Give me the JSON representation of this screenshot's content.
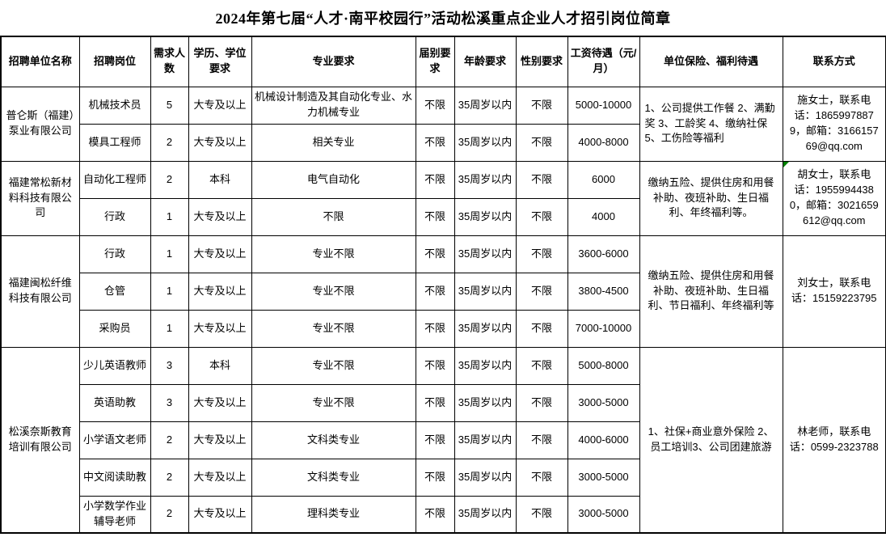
{
  "title": "2024年第七届“人才·南平校园行”活动松溪重点企业人才招引岗位简章",
  "colors": {
    "border": "#000000",
    "text": "#000000",
    "background": "#ffffff",
    "corner_marker_green": "#008000"
  },
  "table": {
    "headers": [
      "招聘单位名称",
      "招聘岗位",
      "需求人数",
      "学历、学位要求",
      "专业要求",
      "届别要求",
      "年龄要求",
      "性别要求",
      "工资待遇（元/月）",
      "单位保险、福利待遇",
      "联系方式"
    ],
    "companies": [
      {
        "name": "普仑斯（福建）泵业有限公司",
        "welfare": "1、公司提供工作餐 2、满勤奖 3、工龄奖 4、缴纳社保 5、工伤险等福利",
        "contact": "施女士，联系电话：18659978879，邮箱：316615769@qq.com",
        "has_corner_marker": false,
        "positions": [
          {
            "title": "机械技术员",
            "headcount": "5",
            "education": "大专及以上",
            "major": "机械设计制造及其自动化专业、水力机械专业",
            "class_req": "不限",
            "age": "35周岁以内",
            "gender": "不限",
            "salary": "5000-10000"
          },
          {
            "title": "模具工程师",
            "headcount": "2",
            "education": "大专及以上",
            "major": "相关专业",
            "class_req": "不限",
            "age": "35周岁以内",
            "gender": "不限",
            "salary": "4000-8000"
          }
        ]
      },
      {
        "name": "福建常松新材料科技有限公司",
        "welfare": "缴纳五险、提供住房和用餐补助、夜班补助、生日福利、年终福利等。",
        "contact": "胡女士，联系电话：19559944380，邮箱：3021659612@qq.com",
        "has_corner_marker": true,
        "positions": [
          {
            "title": "自动化工程师",
            "headcount": "2",
            "education": "本科",
            "major": "电气自动化",
            "class_req": "不限",
            "age": "35周岁以内",
            "gender": "不限",
            "salary": "6000"
          },
          {
            "title": "行政",
            "headcount": "1",
            "education": "大专及以上",
            "major": "不限",
            "class_req": "不限",
            "age": "35周岁以内",
            "gender": "不限",
            "salary": "4000"
          }
        ]
      },
      {
        "name": "福建闽松纤维科技有限公司",
        "welfare": "缴纳五险、提供住房和用餐补助、夜班补助、生日福利、节日福利、年终福利等",
        "contact": "刘女士，联系电话：15159223795",
        "has_corner_marker": false,
        "positions": [
          {
            "title": "行政",
            "headcount": "1",
            "education": "大专及以上",
            "major": "专业不限",
            "class_req": "不限",
            "age": "35周岁以内",
            "gender": "不限",
            "salary": "3600-6000"
          },
          {
            "title": "仓管",
            "headcount": "1",
            "education": "大专及以上",
            "major": "专业不限",
            "class_req": "不限",
            "age": "35周岁以内",
            "gender": "不限",
            "salary": "3800-4500"
          },
          {
            "title": "采购员",
            "headcount": "1",
            "education": "大专及以上",
            "major": "专业不限",
            "class_req": "不限",
            "age": "35周岁以内",
            "gender": "不限",
            "salary": "7000-10000"
          }
        ]
      },
      {
        "name": "松溪奈斯教育培训有限公司",
        "welfare": "1、社保+商业意外保险 2、员工培训3、公司团建旅游",
        "contact": "林老师，联系电话：0599-2323788",
        "has_corner_marker": false,
        "positions": [
          {
            "title": "少儿英语教师",
            "headcount": "3",
            "education": "本科",
            "major": "专业不限",
            "class_req": "不限",
            "age": "35周岁以内",
            "gender": "不限",
            "salary": "5000-8000"
          },
          {
            "title": "英语助教",
            "headcount": "3",
            "education": "大专及以上",
            "major": "专业不限",
            "class_req": "不限",
            "age": "35周岁以内",
            "gender": "不限",
            "salary": "3000-5000"
          },
          {
            "title": "小学语文老师",
            "headcount": "2",
            "education": "大专及以上",
            "major": "文科类专业",
            "class_req": "不限",
            "age": "35周岁以内",
            "gender": "不限",
            "salary": "4000-6000"
          },
          {
            "title": "中文阅读助教",
            "headcount": "2",
            "education": "大专及以上",
            "major": "文科类专业",
            "class_req": "不限",
            "age": "35周岁以内",
            "gender": "不限",
            "salary": "3000-5000"
          },
          {
            "title": "小学数学作业辅导老师",
            "headcount": "2",
            "education": "大专及以上",
            "major": "理科类专业",
            "class_req": "不限",
            "age": "35周岁以内",
            "gender": "不限",
            "salary": "3000-5000"
          }
        ]
      }
    ]
  }
}
